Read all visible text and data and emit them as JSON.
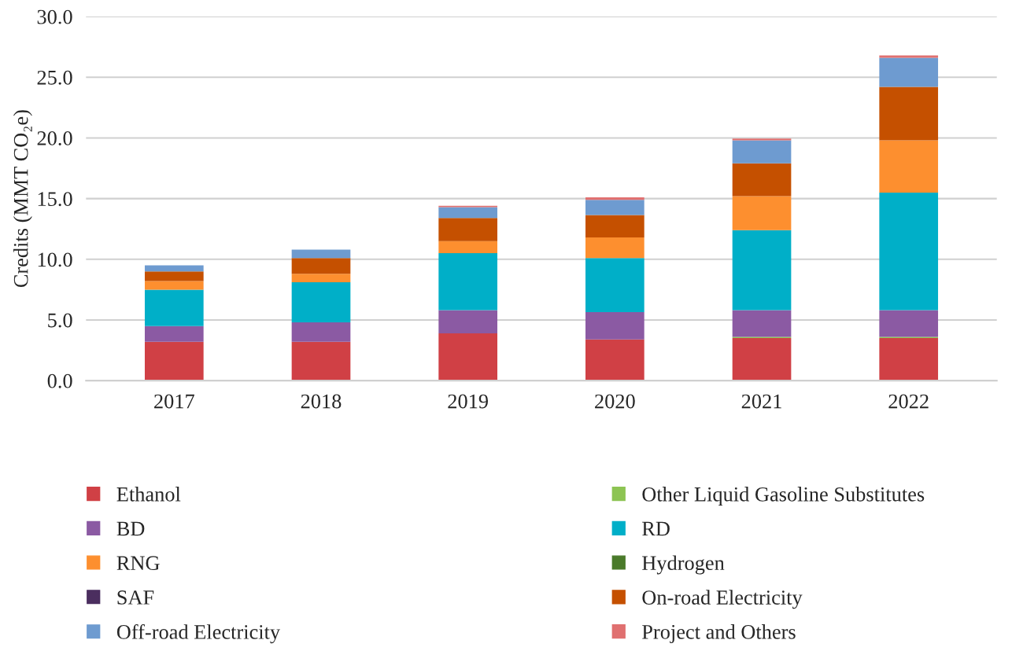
{
  "chart_data": {
    "type": "bar",
    "stacked": true,
    "ylabel": "Credits (MMT CO₂e)",
    "categories": [
      "2017",
      "2018",
      "2019",
      "2020",
      "2021",
      "2022"
    ],
    "series": [
      {
        "name": "Ethanol",
        "color": "#d04045",
        "values": [
          3.2,
          3.2,
          3.9,
          3.4,
          3.5,
          3.5
        ]
      },
      {
        "name": "Other Liquid Gasoline Substitutes",
        "color": "#8dc453",
        "values": [
          0,
          0,
          0,
          0,
          0.1,
          0.1
        ]
      },
      {
        "name": "BD",
        "color": "#8b5aa3",
        "values": [
          1.3,
          1.6,
          1.9,
          2.25,
          2.2,
          2.2
        ]
      },
      {
        "name": "RD",
        "color": "#00afc8",
        "values": [
          3.0,
          3.3,
          4.7,
          4.45,
          6.6,
          9.7
        ]
      },
      {
        "name": "RNG",
        "color": "#fd8f2f",
        "values": [
          0.7,
          0.7,
          1.0,
          1.7,
          2.8,
          4.3
        ]
      },
      {
        "name": "Hydrogen",
        "color": "#4a7a2a",
        "values": [
          0,
          0,
          0,
          0,
          0,
          0
        ]
      },
      {
        "name": "SAF",
        "color": "#4b2e5f",
        "values": [
          0,
          0,
          0,
          0,
          0,
          0
        ]
      },
      {
        "name": "On-road Electricity",
        "color": "#c55000",
        "values": [
          0.8,
          1.3,
          1.9,
          1.85,
          2.7,
          4.4
        ]
      },
      {
        "name": "Off-road Electricity",
        "color": "#6e9bd0",
        "values": [
          0.5,
          0.7,
          0.9,
          1.25,
          1.9,
          2.4
        ]
      },
      {
        "name": "Project and Others",
        "color": "#e07070",
        "values": [
          0,
          0,
          0.1,
          0.2,
          0.15,
          0.2
        ]
      }
    ],
    "ylim": [
      0,
      30
    ],
    "yticks": [
      {
        "value": 0,
        "label": "0.0"
      },
      {
        "value": 5,
        "label": "5.0"
      },
      {
        "value": 10,
        "label": "10.0"
      },
      {
        "value": 15,
        "label": "15.0"
      },
      {
        "value": 20,
        "label": "20.0"
      },
      {
        "value": 25,
        "label": "25.0"
      },
      {
        "value": 30,
        "label": "30.0"
      }
    ],
    "grid": "y",
    "legend": "bottom"
  }
}
